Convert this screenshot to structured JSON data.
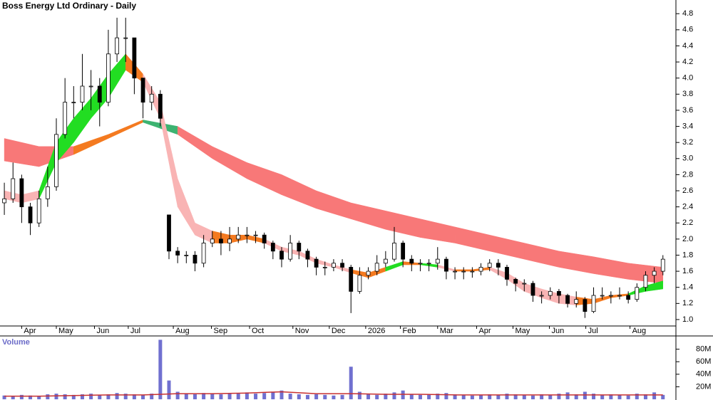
{
  "chart_data": [
    {
      "type": "candlestick",
      "title": "Boss Energy Ltd Ordinary - Daily",
      "xlim": [
        -0.5,
        77.5
      ],
      "xticks": [
        {
          "value": 2.0,
          "label": "Apr"
        },
        {
          "value": 6.0,
          "label": "May"
        },
        {
          "value": 10.4,
          "label": "Jun"
        },
        {
          "value": 14.3,
          "label": "Jul"
        },
        {
          "value": 19.5,
          "label": "Aug"
        },
        {
          "value": 23.9,
          "label": "Sep"
        },
        {
          "value": 28.3,
          "label": "Oct"
        },
        {
          "value": 33.3,
          "label": "Nov"
        },
        {
          "value": 37.5,
          "label": "Dec"
        },
        {
          "value": 41.7,
          "label": "2026"
        },
        {
          "value": 45.7,
          "label": "Feb"
        },
        {
          "value": 50.0,
          "label": "Mar"
        },
        {
          "value": 54.5,
          "label": "Apr"
        },
        {
          "value": 58.7,
          "label": "May"
        },
        {
          "value": 62.9,
          "label": "Jun"
        },
        {
          "value": 67.1,
          "label": "Jul"
        },
        {
          "value": 72.2,
          "label": "Aug"
        }
      ],
      "ylim": [
        0.92,
        4.97
      ],
      "yticks": [
        {
          "value": 1,
          "label": "1.0"
        },
        1.2,
        1.4,
        1.6,
        1.8,
        {
          "value": 2,
          "label": "2.0"
        },
        2.2,
        2.4,
        2.6,
        2.8,
        {
          "value": 3,
          "label": "3.0"
        },
        3.2,
        3.4,
        3.6,
        3.8,
        {
          "value": 4,
          "label": "4.0"
        },
        4.2,
        4.4,
        4.6,
        4.8
      ],
      "open": [
        2.45,
        2.5,
        2.75,
        2.4,
        2.2,
        2.5,
        2.65,
        3.3,
        3.7,
        3.7,
        3.9,
        3.9,
        3.7,
        4.3,
        4.5,
        4.5,
        4.0,
        3.7,
        3.8,
        2.3,
        1.85,
        1.8,
        1.8,
        1.7,
        1.95,
        2.0,
        1.95,
        2.0,
        2.05,
        2.05,
        2.05,
        1.95,
        1.85,
        1.75,
        1.95,
        1.85,
        1.75,
        1.65,
        1.65,
        1.7,
        1.65,
        1.35,
        1.55,
        1.6,
        1.7,
        1.75,
        1.95,
        1.75,
        1.7,
        1.7,
        1.7,
        1.75,
        1.6,
        1.6,
        1.6,
        1.6,
        1.65,
        1.7,
        1.65,
        1.5,
        1.45,
        1.45,
        1.3,
        1.3,
        1.35,
        1.3,
        1.2,
        1.25,
        1.1,
        1.3,
        1.3,
        1.3,
        1.3,
        1.25,
        1.4,
        1.55,
        1.6
      ],
      "high": [
        2.7,
        2.95,
        2.8,
        2.45,
        2.6,
        2.9,
        3.5,
        4.0,
        3.9,
        4.3,
        4.1,
        4.0,
        4.6,
        4.75,
        4.75,
        4.5,
        4.0,
        3.9,
        3.85,
        2.3,
        1.9,
        1.85,
        1.85,
        2.05,
        2.1,
        2.1,
        2.15,
        2.15,
        2.15,
        2.1,
        2.08,
        1.98,
        1.9,
        2.05,
        1.98,
        1.88,
        1.78,
        1.72,
        1.75,
        1.75,
        1.68,
        1.65,
        1.65,
        1.8,
        1.85,
        2.15,
        1.98,
        1.8,
        1.75,
        1.75,
        1.9,
        1.78,
        1.65,
        1.65,
        1.65,
        1.7,
        1.75,
        1.75,
        1.68,
        1.52,
        1.5,
        1.48,
        1.35,
        1.4,
        1.38,
        1.32,
        1.35,
        1.28,
        1.4,
        1.4,
        1.35,
        1.4,
        1.35,
        1.45,
        1.6,
        1.65,
        1.8
      ],
      "low": [
        2.3,
        2.45,
        2.2,
        2.05,
        2.15,
        2.4,
        2.6,
        3.25,
        3.5,
        3.6,
        3.6,
        3.4,
        3.65,
        4.2,
        4.2,
        3.8,
        3.5,
        3.6,
        3.4,
        1.75,
        1.7,
        1.7,
        1.6,
        1.65,
        1.9,
        1.8,
        1.85,
        1.95,
        1.95,
        1.95,
        1.88,
        1.75,
        1.65,
        1.72,
        1.75,
        1.65,
        1.55,
        1.55,
        1.6,
        1.6,
        1.08,
        1.32,
        1.5,
        1.55,
        1.65,
        1.72,
        1.65,
        1.6,
        1.6,
        1.6,
        1.62,
        1.5,
        1.5,
        1.5,
        1.52,
        1.55,
        1.6,
        1.55,
        1.42,
        1.35,
        1.35,
        1.22,
        1.2,
        1.25,
        1.2,
        1.15,
        1.15,
        1.02,
        1.08,
        1.25,
        1.2,
        1.25,
        1.2,
        1.22,
        1.35,
        1.45,
        1.55
      ],
      "close": [
        2.5,
        2.75,
        2.4,
        2.2,
        2.5,
        2.65,
        3.3,
        3.7,
        3.7,
        3.9,
        3.9,
        3.7,
        4.3,
        4.5,
        4.5,
        4.0,
        3.7,
        3.8,
        3.5,
        1.85,
        1.8,
        1.8,
        1.7,
        1.95,
        2.0,
        1.95,
        2.0,
        2.05,
        2.05,
        2.05,
        1.95,
        1.85,
        1.75,
        1.95,
        1.85,
        1.75,
        1.65,
        1.65,
        1.7,
        1.65,
        1.35,
        1.55,
        1.6,
        1.7,
        1.75,
        1.95,
        1.75,
        1.7,
        1.7,
        1.7,
        1.75,
        1.6,
        1.6,
        1.6,
        1.6,
        1.65,
        1.7,
        1.65,
        1.5,
        1.45,
        1.45,
        1.3,
        1.3,
        1.35,
        1.3,
        1.2,
        1.25,
        1.1,
        1.3,
        1.3,
        1.3,
        1.3,
        1.25,
        1.4,
        1.55,
        1.6,
        1.75
      ],
      "ribbons": [
        {
          "x": [
            0,
            4,
            8,
            12,
            16,
            20,
            24,
            28,
            32,
            36,
            40,
            44,
            48,
            52,
            56,
            60,
            64,
            68,
            72,
            76
          ],
          "upper": [
            3.25,
            3.15,
            3.15,
            3.3,
            3.48,
            3.4,
            3.15,
            2.95,
            2.8,
            2.6,
            2.45,
            2.35,
            2.25,
            2.15,
            2.05,
            1.95,
            1.85,
            1.78,
            1.7,
            1.65
          ],
          "lower": [
            2.97,
            2.9,
            3.05,
            3.25,
            3.45,
            3.3,
            3.0,
            2.75,
            2.55,
            2.38,
            2.25,
            2.12,
            2.02,
            1.95,
            1.85,
            1.75,
            1.65,
            1.57,
            1.5,
            1.45
          ],
          "colors": [
            "#f87878",
            "#f87878",
            "#f47a20",
            "#f47a20",
            "#3cb371",
            "#f87878",
            "#f87878",
            "#f87878",
            "#f87878",
            "#f87878",
            "#f87878",
            "#f87878",
            "#f87878",
            "#f87878",
            "#f87878",
            "#f87878",
            "#f87878",
            "#f87878",
            "#f87878",
            "#f87878"
          ]
        },
        {
          "x": [
            0,
            2,
            4,
            6,
            8,
            10,
            12,
            14,
            16,
            18,
            20,
            22,
            24,
            26,
            28,
            30,
            32,
            34,
            36,
            38,
            40,
            42,
            44,
            46,
            48,
            50,
            52,
            54,
            56,
            58,
            60,
            62,
            64,
            66,
            68,
            70,
            72,
            74,
            76
          ],
          "upper": [
            2.6,
            2.55,
            2.6,
            3.2,
            3.5,
            3.75,
            4.05,
            4.3,
            4.05,
            3.7,
            2.75,
            2.2,
            2.1,
            2.05,
            2.05,
            2.0,
            1.9,
            1.85,
            1.75,
            1.68,
            1.62,
            1.58,
            1.65,
            1.72,
            1.7,
            1.68,
            1.62,
            1.62,
            1.65,
            1.58,
            1.45,
            1.38,
            1.32,
            1.28,
            1.25,
            1.3,
            1.32,
            1.42,
            1.48
          ],
          "lower": [
            2.5,
            2.45,
            2.5,
            2.95,
            3.2,
            3.5,
            3.75,
            4.1,
            3.95,
            3.5,
            2.4,
            2.05,
            1.95,
            1.95,
            2.0,
            1.95,
            1.85,
            1.8,
            1.7,
            1.65,
            1.58,
            1.52,
            1.6,
            1.68,
            1.68,
            1.65,
            1.6,
            1.6,
            1.62,
            1.5,
            1.35,
            1.27,
            1.2,
            1.18,
            1.2,
            1.27,
            1.3,
            1.35,
            1.38
          ],
          "colors": [
            "#f9b4b4",
            "#f9b4b4",
            "#22dd22",
            "#22dd22",
            "#22dd22",
            "#22dd22",
            "#22dd22",
            "#f47a20",
            "#f9b4b4",
            "#f9b4b4",
            "#f9b4b4",
            "#f9b4b4",
            "#f47a20",
            "#f47a20",
            "#f47a20",
            "#f9b4b4",
            "#f9b4b4",
            "#f9b4b4",
            "#f9b4b4",
            "#f9b4b4",
            "#f47a20",
            "#f47a20",
            "#22dd22",
            "#f47a20",
            "#22dd22",
            "#f9b4b4",
            "#f47a20",
            "#f47a20",
            "#f9b4b4",
            "#f9b4b4",
            "#f9b4b4",
            "#f9b4b4",
            "#f9b4b4",
            "#f47a20",
            "#f47a20",
            "#f47a20",
            "#22dd22",
            "#22dd22",
            "#22dd22"
          ]
        }
      ]
    },
    {
      "type": "bar",
      "title": "Volume",
      "color": "#7070d0",
      "xlim": [
        -0.5,
        77.5
      ],
      "ylim": [
        0,
        100000000
      ],
      "yticks": [
        {
          "value": 20000000,
          "label": "20M"
        },
        {
          "value": 40000000,
          "label": "40M"
        },
        {
          "value": 60000000,
          "label": "60M"
        },
        {
          "value": 80000000,
          "label": "80M"
        }
      ],
      "values": [
        6000000,
        5000000,
        7000000,
        6000000,
        5000000,
        8000000,
        9000000,
        8000000,
        7000000,
        8000000,
        9000000,
        7000000,
        8000000,
        10000000,
        9000000,
        8000000,
        7000000,
        9000000,
        95000000,
        30000000,
        12000000,
        9000000,
        8000000,
        10000000,
        9000000,
        8000000,
        9000000,
        10000000,
        11000000,
        9000000,
        10000000,
        12000000,
        14000000,
        9000000,
        8000000,
        7000000,
        8000000,
        7000000,
        6000000,
        7000000,
        52000000,
        12000000,
        8000000,
        7000000,
        9000000,
        11000000,
        14000000,
        8000000,
        7000000,
        8000000,
        9000000,
        10000000,
        8000000,
        7000000,
        6000000,
        7000000,
        8000000,
        7000000,
        9000000,
        8000000,
        7000000,
        6000000,
        8000000,
        7000000,
        9000000,
        11000000,
        8000000,
        12000000,
        9000000,
        7000000,
        8000000,
        7000000,
        6000000,
        9000000,
        8000000,
        11000000,
        7000000
      ],
      "average": {
        "color": "#c83030",
        "x": [
          0,
          4,
          8,
          12,
          16,
          20,
          24,
          28,
          32,
          36,
          40,
          44,
          48,
          52,
          56,
          60,
          64,
          68,
          72,
          76
        ],
        "values": [
          5000000,
          5000000,
          6000000,
          7000000,
          7000000,
          9000000,
          9000000,
          10000000,
          12000000,
          9000000,
          9000000,
          8000000,
          8000000,
          7000000,
          7000000,
          7000000,
          7000000,
          7000000,
          7000000,
          7000000
        ]
      }
    }
  ]
}
